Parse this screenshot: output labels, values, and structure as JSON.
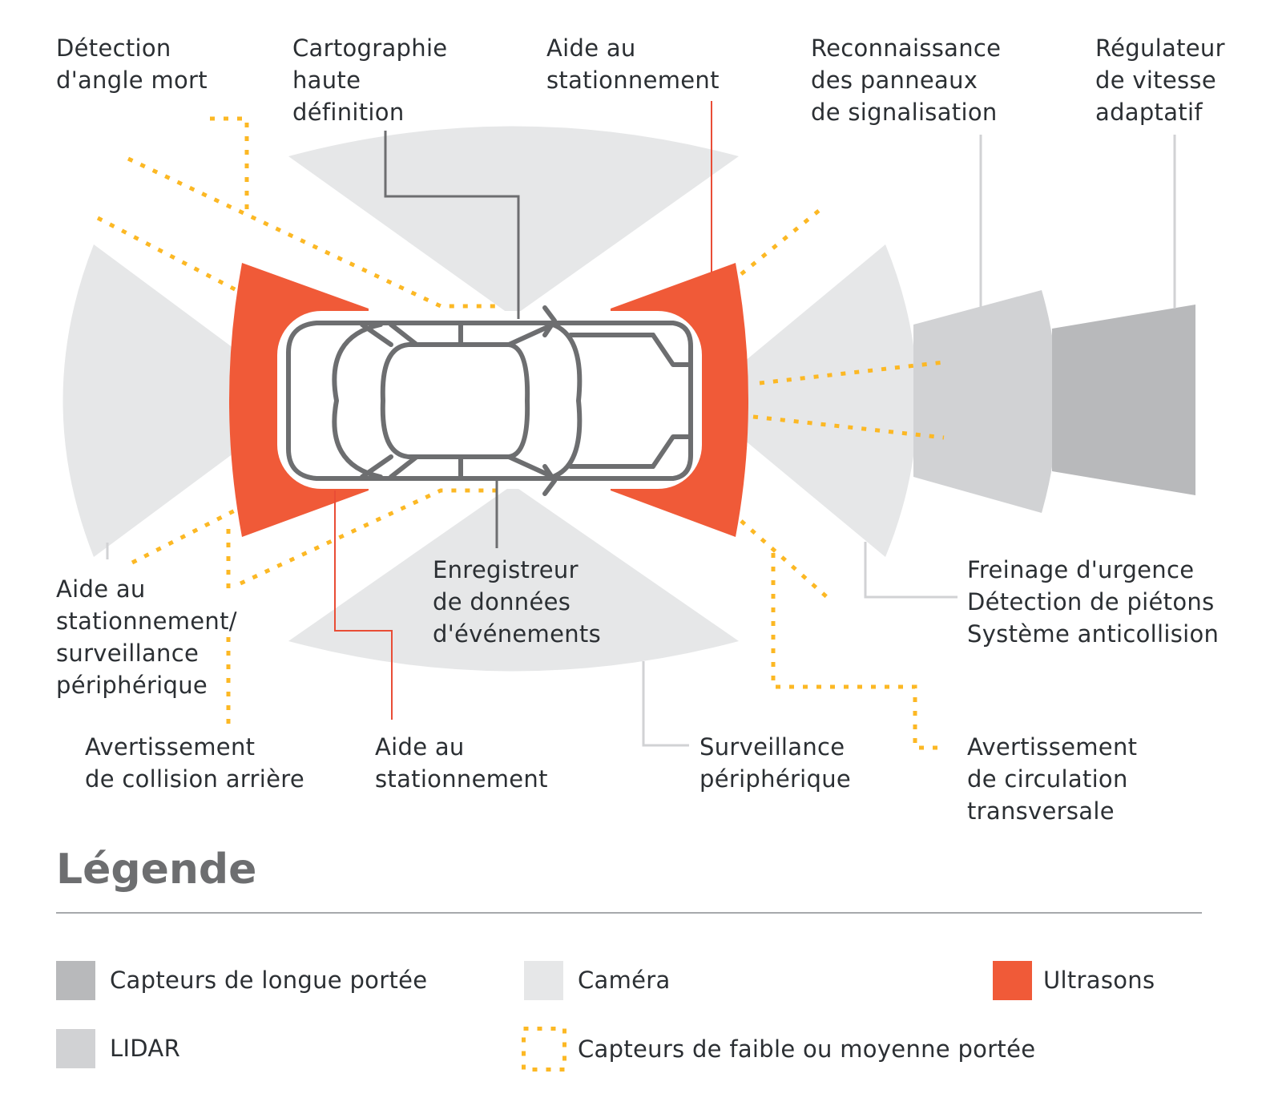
{
  "colors": {
    "long_range": "#b8b9bb",
    "lidar": "#d1d2d4",
    "camera": "#e6e7e8",
    "ultrasound": "#f05a38",
    "short_medium": "#fcb824",
    "car_outline": "#6d6e70",
    "leader_red": "#e94d36",
    "leader_dark": "#6d6e70",
    "leader_light": "#d1d2d4"
  },
  "labels": {
    "blind_spot": "Détection\nd'angle mort",
    "hd_mapping": "Cartographie\nhaute\ndéfinition",
    "park_assist_front": "Aide au\nstationnement",
    "traffic_sign": "Reconnaissance\ndes panneaux\nde signalisation",
    "acc": "Régulateur\nde vitesse\nadaptatif",
    "park_surround": "Aide au\nstationnement/\nsurveillance\npériphérique",
    "event_recorder": "Enregistreur\nde données\nd'événements",
    "emergency": "Freinage d'urgence\nDétection de piétons\nSystème anticollision",
    "rear_collision": "Avertissement\nde collision arrière",
    "park_assist_rear": "Aide au\nstationnement",
    "surround_view": "Surveillance\npériphérique",
    "cross_traffic": "Avertissement\nde circulation\ntransversale"
  },
  "legend": {
    "title": "Légende",
    "items": {
      "long_range": "Capteurs de longue portée",
      "camera": "Caméra",
      "ultrasound": "Ultrasons",
      "lidar": "LIDAR",
      "short_medium": "Capteurs de faible ou moyenne portée"
    }
  }
}
